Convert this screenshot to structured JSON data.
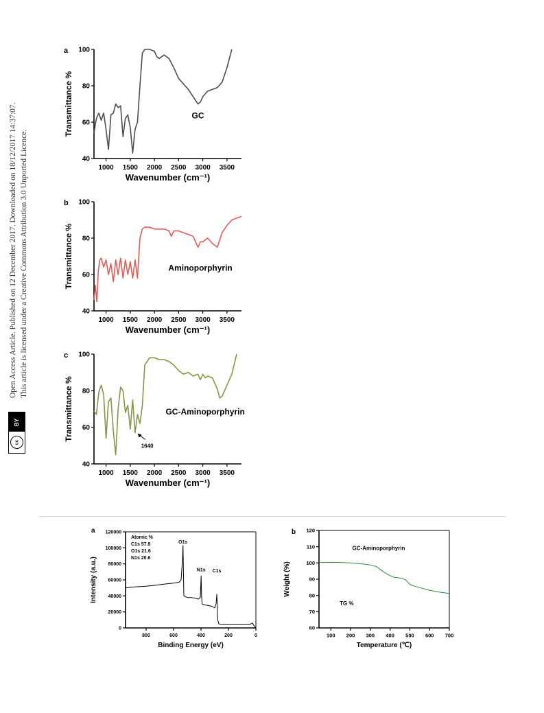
{
  "sidebar": {
    "line1": "Open Access Article. Published on 12 December 2017. Downloaded on 18/12/2017 14:37:07.",
    "line2": "This article is licensed under a Creative Commons Attribution 3.0 Unported Licence.",
    "badge_by": "BY",
    "badge_cc": "cc"
  },
  "chart_data": [
    {
      "id": "ftir-a",
      "panel": "a",
      "type": "line",
      "xlabel": "Wavenumber (cm⁻¹)",
      "ylabel": "Transmittance %",
      "xlim": [
        750,
        3800
      ],
      "ylim": [
        40,
        100
      ],
      "xticks": [
        1000,
        1500,
        2000,
        2500,
        3000,
        3500
      ],
      "yticks": [
        40,
        60,
        80,
        100
      ],
      "color": "#4d4d4d",
      "annotation": {
        "text": "GC",
        "x": 2900,
        "y": 62
      },
      "series": [
        {
          "x": [
            750,
            800,
            850,
            900,
            950,
            1000,
            1050,
            1100,
            1150,
            1200,
            1250,
            1300,
            1350,
            1400,
            1450,
            1500,
            1550,
            1600,
            1650,
            1700,
            1750,
            1800,
            1900,
            2000,
            2050,
            2100,
            2200,
            2300,
            2400,
            2500,
            2600,
            2700,
            2800,
            2900,
            2950,
            3000,
            3100,
            3200,
            3300,
            3400,
            3500,
            3600
          ],
          "y": [
            54,
            62,
            65,
            61,
            65,
            56,
            45,
            64,
            65,
            70,
            68,
            69,
            52,
            62,
            64,
            57,
            43,
            56,
            60,
            80,
            98,
            100,
            100,
            99,
            96,
            95,
            97,
            95,
            90,
            84,
            81,
            78,
            74,
            70,
            71,
            74,
            77,
            78,
            79,
            82,
            90,
            100
          ]
        }
      ]
    },
    {
      "id": "ftir-b",
      "panel": "b",
      "type": "line",
      "xlabel": "Wavenumber (cm⁻¹)",
      "ylabel": "Transmittance %",
      "xlim": [
        750,
        3800
      ],
      "ylim": [
        40,
        100
      ],
      "xticks": [
        1000,
        1500,
        2000,
        2500,
        3000,
        3500
      ],
      "yticks": [
        40,
        60,
        80,
        100
      ],
      "color": "#e35b57",
      "annotation": {
        "text": "Aminoporphyrin",
        "x": 2950,
        "y": 62
      },
      "series": [
        {
          "x": [
            750,
            780,
            810,
            840,
            870,
            900,
            950,
            1000,
            1050,
            1100,
            1150,
            1200,
            1250,
            1300,
            1350,
            1400,
            1450,
            1500,
            1550,
            1600,
            1650,
            1700,
            1750,
            1800,
            1900,
            2000,
            2100,
            2200,
            2300,
            2350,
            2400,
            2500,
            2600,
            2700,
            2800,
            2900,
            2950,
            3000,
            3100,
            3200,
            3300,
            3350,
            3400,
            3500,
            3600,
            3700,
            3800
          ],
          "y": [
            46,
            54,
            45,
            62,
            68,
            69,
            64,
            68,
            60,
            66,
            56,
            68,
            60,
            69,
            58,
            68,
            60,
            67,
            58,
            68,
            58,
            80,
            85,
            86,
            86,
            85,
            85,
            85,
            84,
            81,
            84,
            84,
            83,
            82,
            81,
            75,
            78,
            78,
            80,
            77,
            75,
            79,
            83,
            87,
            90,
            91,
            92
          ]
        }
      ]
    },
    {
      "id": "ftir-c",
      "panel": "c",
      "type": "line",
      "xlabel": "Wavenumber (cm⁻¹)",
      "ylabel": "Transmittance %",
      "xlim": [
        750,
        3800
      ],
      "ylim": [
        40,
        100
      ],
      "xticks": [
        1000,
        1500,
        2000,
        2500,
        3000,
        3500
      ],
      "yticks": [
        40,
        60,
        80,
        100
      ],
      "color": "#8a9346",
      "annotation": {
        "text": "GC-Aminoporphyrin",
        "x": 3050,
        "y": 67
      },
      "peak_label": {
        "text": "1640",
        "x": 1640,
        "y": 57
      },
      "series": [
        {
          "x": [
            750,
            800,
            850,
            900,
            950,
            1000,
            1050,
            1100,
            1150,
            1200,
            1250,
            1300,
            1350,
            1400,
            1450,
            1500,
            1550,
            1600,
            1650,
            1700,
            1750,
            1800,
            1900,
            2000,
            2100,
            2200,
            2300,
            2400,
            2500,
            2600,
            2700,
            2800,
            2900,
            2950,
            3000,
            3050,
            3100,
            3200,
            3300,
            3350,
            3400,
            3500,
            3600,
            3700
          ],
          "y": [
            69,
            67,
            79,
            83,
            78,
            54,
            74,
            76,
            58,
            45,
            70,
            82,
            80,
            68,
            72,
            59,
            75,
            57,
            67,
            62,
            72,
            94,
            98,
            98,
            97,
            97,
            96,
            94,
            91,
            89,
            90,
            88,
            89,
            86,
            89,
            87,
            88,
            87,
            81,
            76,
            77,
            83,
            89,
            100
          ]
        }
      ]
    },
    {
      "id": "xps",
      "panel": "a",
      "type": "line",
      "xlabel": "Binding Energy (eV)",
      "ylabel": "Intensity (a.u.)",
      "xlim": [
        950,
        0
      ],
      "ylim": [
        0,
        120000
      ],
      "xticks": [
        800,
        600,
        400,
        200,
        0
      ],
      "yticks": [
        0,
        20000,
        40000,
        60000,
        80000,
        100000,
        120000
      ],
      "color": "#000000",
      "inset": {
        "title": "Atomic %",
        "lines": [
          "C1s 57.8",
          "O1s 21.6",
          "N1s 20.6"
        ]
      },
      "peak_labels": [
        {
          "text": "O1s",
          "x": 531,
          "y": 103000
        },
        {
          "text": "N1s",
          "x": 399,
          "y": 68000
        },
        {
          "text": "C1s",
          "x": 285,
          "y": 67000
        }
      ],
      "series": [
        {
          "x": [
            950,
            900,
            850,
            800,
            750,
            700,
            650,
            600,
            560,
            545,
            535,
            531,
            528,
            525,
            500,
            470,
            440,
            420,
            405,
            399,
            396,
            392,
            380,
            350,
            320,
            300,
            290,
            285,
            282,
            278,
            270,
            250,
            200,
            150,
            100,
            50,
            25,
            10,
            0
          ],
          "y": [
            50000,
            51000,
            51500,
            52000,
            53000,
            54000,
            55000,
            56000,
            57000,
            60000,
            85000,
            103000,
            70000,
            40000,
            38000,
            38000,
            37000,
            36000,
            38000,
            65000,
            40000,
            30000,
            29000,
            28000,
            27000,
            25000,
            30000,
            42000,
            30000,
            10000,
            5000,
            4000,
            4000,
            4000,
            4000,
            4000,
            6000,
            2000,
            0
          ]
        }
      ]
    },
    {
      "id": "tga",
      "panel": "b",
      "type": "line",
      "xlabel": "Temperature (℃)",
      "ylabel": "Weight (%)",
      "xlim": [
        40,
        700
      ],
      "ylim": [
        60,
        120
      ],
      "xticks": [
        100,
        200,
        300,
        400,
        500,
        600,
        700
      ],
      "yticks": [
        60,
        70,
        80,
        90,
        100,
        110,
        120
      ],
      "color": "#2e8b3d",
      "title": "GC-Aminoporphyrin",
      "annotation": {
        "text": "TG %",
        "x": 180,
        "y": 74
      },
      "series": [
        {
          "x": [
            40,
            100,
            150,
            200,
            250,
            300,
            330,
            350,
            380,
            400,
            420,
            440,
            460,
            480,
            490,
            500,
            520,
            550,
            600,
            650,
            700
          ],
          "y": [
            100.3,
            100.4,
            100.3,
            100,
            99.5,
            98.8,
            97.8,
            96,
            93.5,
            92.2,
            91.2,
            90.9,
            90.5,
            89.5,
            88,
            86.8,
            85.8,
            84.8,
            83.2,
            82,
            81.2
          ]
        }
      ]
    }
  ]
}
